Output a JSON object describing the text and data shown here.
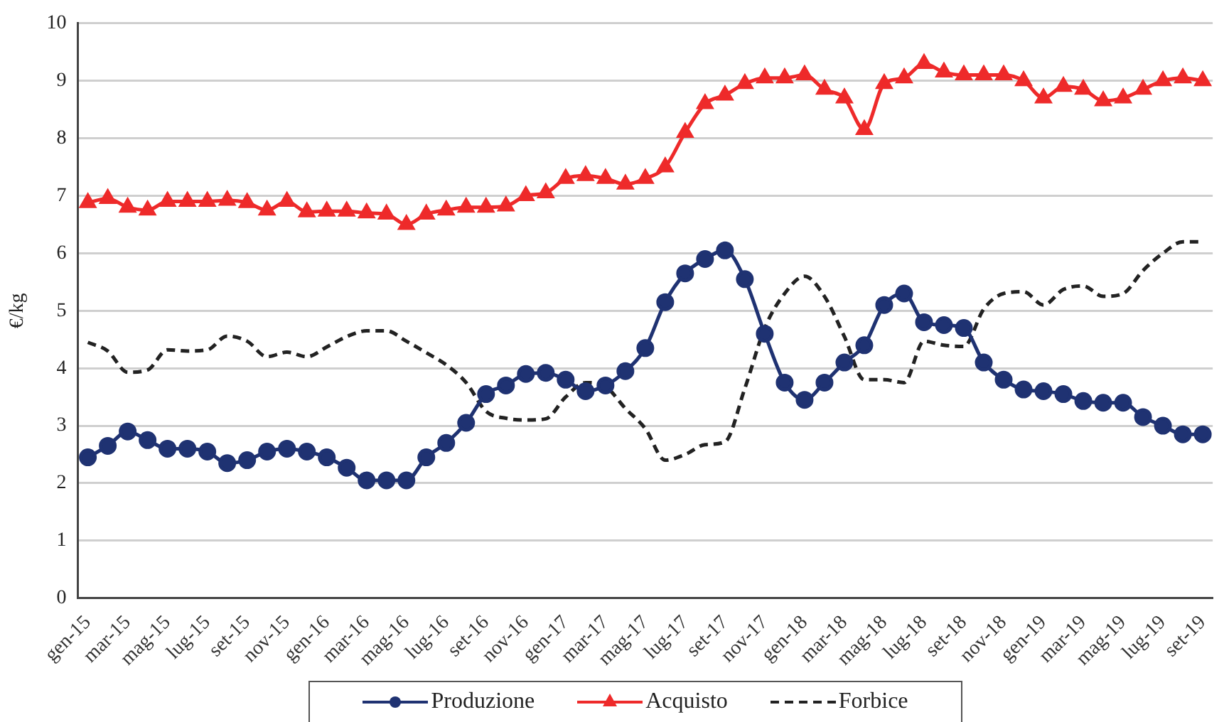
{
  "chart_data": {
    "type": "line",
    "ylabel": "€/kg",
    "categories": [
      "gen-15",
      null,
      "mar-15",
      null,
      "mag-15",
      null,
      "lug-15",
      null,
      "set-15",
      null,
      "nov-15",
      null,
      "gen-16",
      null,
      "mar-16",
      null,
      "mag-16",
      null,
      "lug-16",
      null,
      "set-16",
      null,
      "nov-16",
      null,
      "gen-17",
      null,
      "mar-17",
      null,
      "mag-17",
      null,
      "lug-17",
      null,
      "set-17",
      null,
      "nov-17",
      null,
      "gen-18",
      null,
      "mar-18",
      null,
      "mag-18",
      null,
      "lug-18",
      null,
      "set-18",
      null,
      "nov-18",
      null,
      "gen-19",
      null,
      "mar-19",
      null,
      "mag-19",
      null,
      "lug-19",
      null,
      "set-19"
    ],
    "series": [
      {
        "name": "Produzione",
        "color": "#1f3272",
        "marker": "circle",
        "line_style": "solid",
        "values": [
          2.45,
          2.65,
          2.9,
          2.75,
          2.6,
          2.6,
          2.55,
          2.35,
          2.4,
          2.55,
          2.6,
          2.55,
          2.45,
          2.27,
          2.05,
          2.05,
          2.05,
          2.45,
          2.7,
          3.05,
          3.55,
          3.7,
          3.9,
          3.92,
          3.8,
          3.6,
          3.7,
          3.95,
          4.35,
          5.15,
          5.65,
          5.9,
          6.05,
          5.55,
          4.6,
          3.75,
          3.45,
          3.75,
          4.1,
          4.4,
          5.1,
          5.3,
          4.8,
          4.75,
          4.7,
          4.1,
          3.8,
          3.63,
          3.6,
          3.55,
          3.43,
          3.4,
          3.4,
          3.15,
          3.0,
          2.85,
          2.85
        ]
      },
      {
        "name": "Acquisto",
        "color": "#ee2a2a",
        "marker": "triangle",
        "line_style": "solid",
        "values": [
          6.88,
          6.95,
          6.8,
          6.75,
          6.9,
          6.9,
          6.9,
          6.92,
          6.88,
          6.75,
          6.9,
          6.72,
          6.73,
          6.73,
          6.7,
          6.68,
          6.5,
          6.68,
          6.75,
          6.8,
          6.8,
          6.82,
          7.0,
          7.05,
          7.3,
          7.35,
          7.3,
          7.2,
          7.3,
          7.5,
          8.1,
          8.6,
          8.75,
          8.95,
          9.05,
          9.05,
          9.1,
          8.85,
          8.7,
          8.15,
          8.95,
          9.05,
          9.3,
          9.15,
          9.1,
          9.1,
          9.1,
          9.0,
          8.7,
          8.9,
          8.85,
          8.65,
          8.7,
          8.85,
          9.0,
          9.05,
          9.0
        ]
      },
      {
        "name": "Forbice",
        "color": "#222222",
        "marker": "none",
        "line_style": "dashed",
        "values": [
          4.45,
          4.3,
          3.93,
          3.97,
          4.32,
          4.3,
          4.32,
          4.56,
          4.47,
          4.2,
          4.28,
          4.2,
          4.37,
          4.55,
          4.65,
          4.65,
          4.47,
          4.27,
          4.06,
          3.75,
          3.25,
          3.13,
          3.1,
          3.12,
          3.5,
          3.75,
          3.68,
          3.3,
          2.95,
          2.4,
          2.5,
          2.67,
          2.72,
          3.65,
          4.7,
          5.3,
          5.6,
          5.25,
          4.55,
          3.8,
          3.8,
          3.75,
          4.47,
          4.4,
          4.38,
          5.03,
          5.3,
          5.33,
          5.1,
          5.37,
          5.43,
          5.25,
          5.3,
          5.7,
          6.0,
          6.2,
          6.2
        ]
      }
    ],
    "ylim": [
      0,
      10
    ],
    "yticks": [
      0,
      1,
      2,
      3,
      4,
      5,
      6,
      7,
      8,
      9,
      10
    ],
    "grid": "y",
    "legend": "bottom"
  }
}
